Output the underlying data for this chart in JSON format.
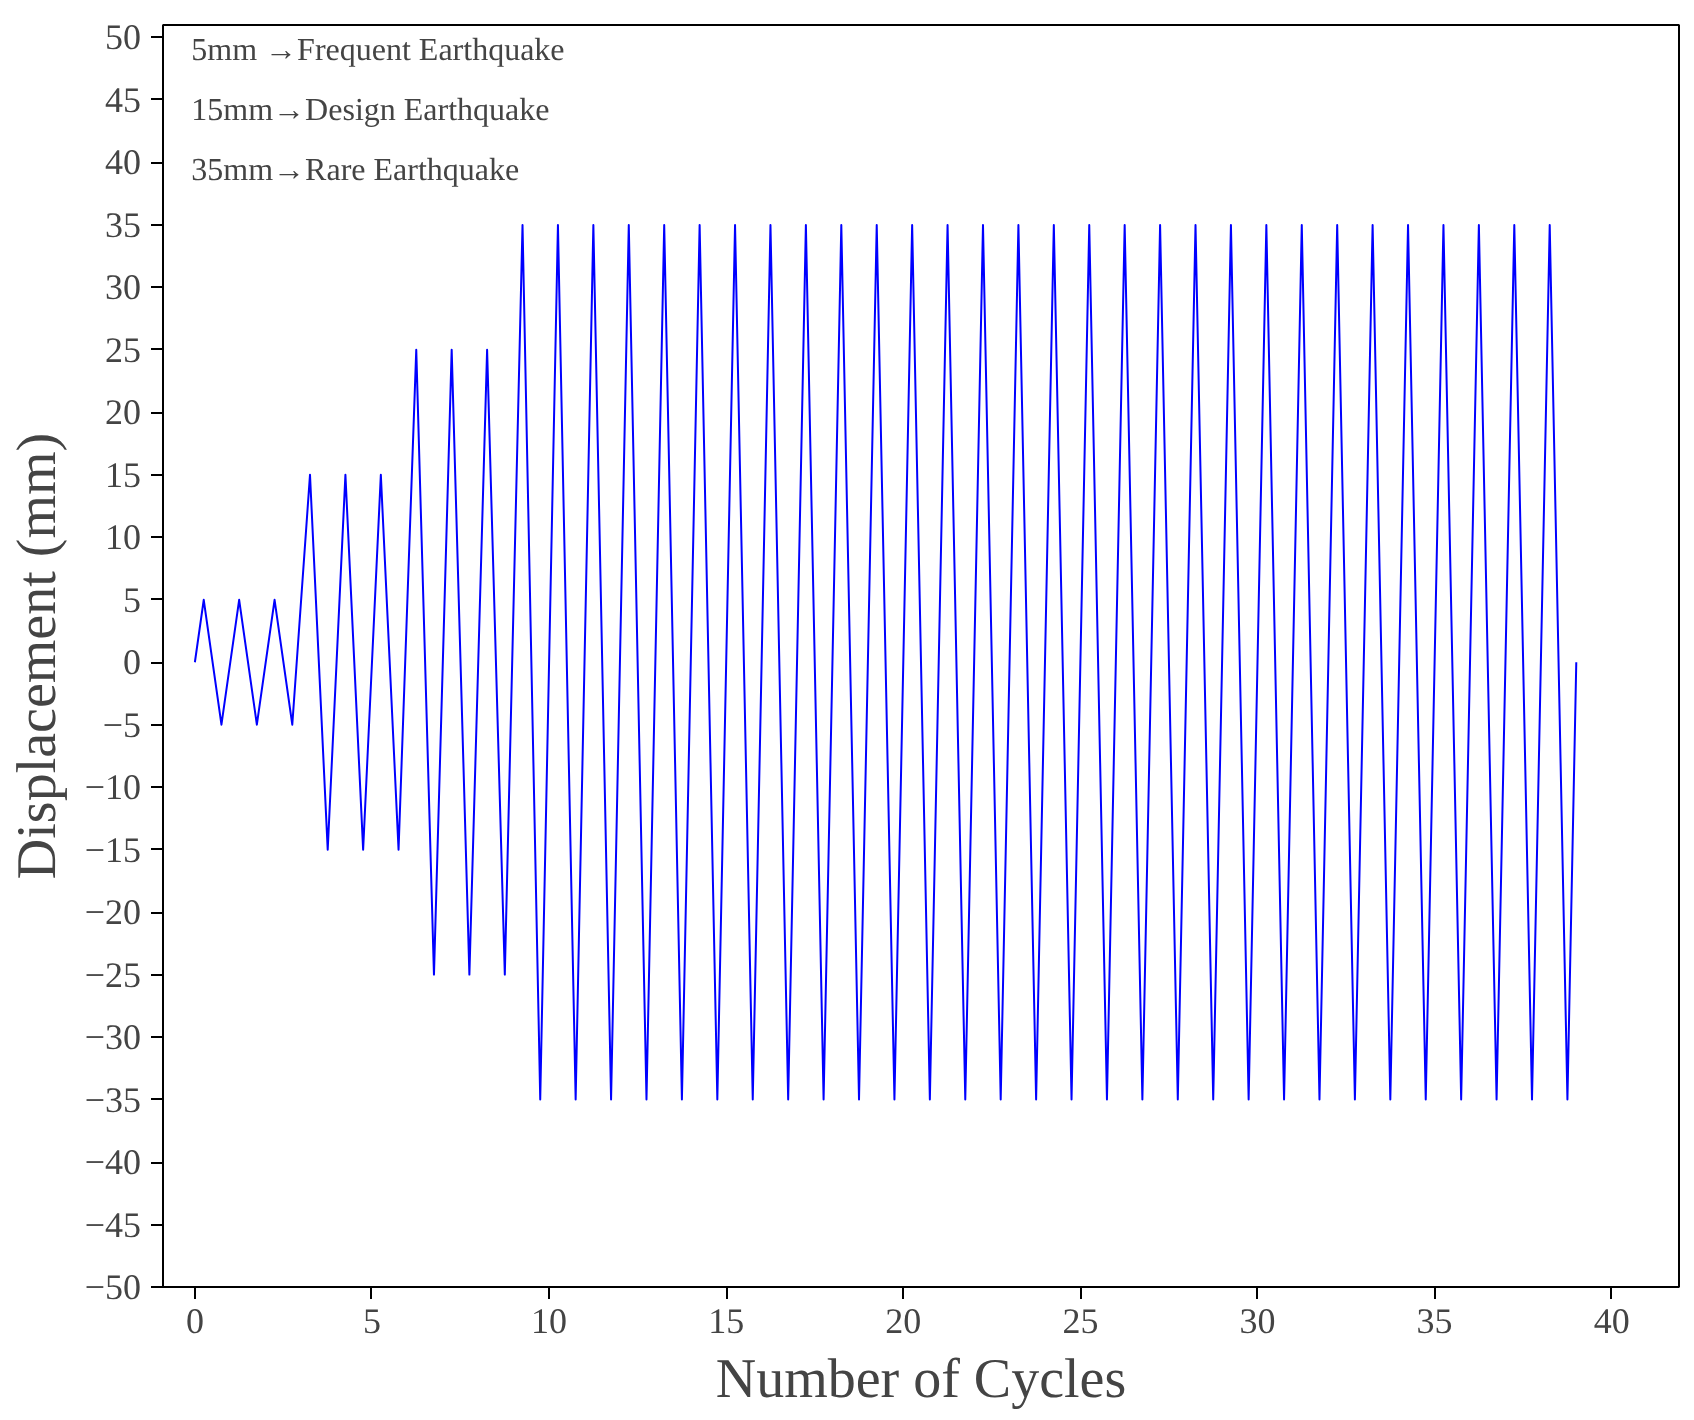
{
  "chart_data": {
    "type": "line",
    "xlabel": "Number of Cycles",
    "ylabel": "Displacement (mm)",
    "annotations": [
      "5mm  →Frequent Earthquake",
      "15mm→Design Earthquake",
      "35mm→Rare Earthquake"
    ],
    "x": [
      0,
      0.25,
      0.75,
      1.25,
      1.75,
      2.25,
      2.75,
      3.25,
      3.75,
      4.25,
      4.75,
      5.25,
      5.75,
      6.25,
      6.75,
      7.25,
      7.75,
      8.25,
      8.75,
      9.25,
      9.75,
      10.25,
      10.75,
      11.25,
      11.75,
      12.25,
      12.75,
      13.25,
      13.75,
      14.25,
      14.75,
      15.25,
      15.75,
      16.25,
      16.75,
      17.25,
      17.75,
      18.25,
      18.75,
      19.25,
      19.75,
      20.25,
      20.75,
      21.25,
      21.75,
      22.25,
      22.75,
      23.25,
      23.75,
      24.25,
      24.75,
      25.25,
      25.75,
      26.25,
      26.75,
      27.25,
      27.75,
      28.25,
      28.75,
      29.25,
      29.75,
      30.25,
      30.75,
      31.25,
      31.75,
      32.25,
      32.75,
      33.25,
      33.75,
      34.25,
      34.75,
      35.25,
      35.75,
      36.25,
      36.75,
      37.25,
      37.75,
      38.25,
      38.75,
      39
    ],
    "series": [
      {
        "color": "#0000ff",
        "values": [
          0,
          5,
          -5,
          5,
          -5,
          5,
          -5,
          15,
          -15,
          15,
          -15,
          15,
          -15,
          25,
          -25,
          25,
          -25,
          25,
          -25,
          35,
          -35,
          35,
          -35,
          35,
          -35,
          35,
          -35,
          35,
          -35,
          35,
          -35,
          35,
          -35,
          35,
          -35,
          35,
          -35,
          35,
          -35,
          35,
          -35,
          35,
          -35,
          35,
          -35,
          35,
          -35,
          35,
          -35,
          35,
          -35,
          35,
          -35,
          35,
          -35,
          35,
          -35,
          35,
          -35,
          35,
          -35,
          35,
          -35,
          35,
          -35,
          35,
          -35,
          35,
          -35,
          35,
          -35,
          35,
          -35,
          35,
          -35,
          35,
          -35,
          35,
          -35,
          0
        ]
      }
    ],
    "xlim": [
      -0.9,
      41.9
    ],
    "xticks": [
      0,
      5,
      10,
      15,
      20,
      25,
      30,
      35,
      40
    ],
    "ylim": [
      -50,
      51
    ],
    "yticks": [
      -50,
      -45,
      -40,
      -35,
      -30,
      -25,
      -20,
      -15,
      -10,
      -5,
      0,
      5,
      10,
      15,
      20,
      25,
      30,
      35,
      40,
      45,
      50
    ],
    "grid": false,
    "marker": "none",
    "line_style": "solid"
  }
}
